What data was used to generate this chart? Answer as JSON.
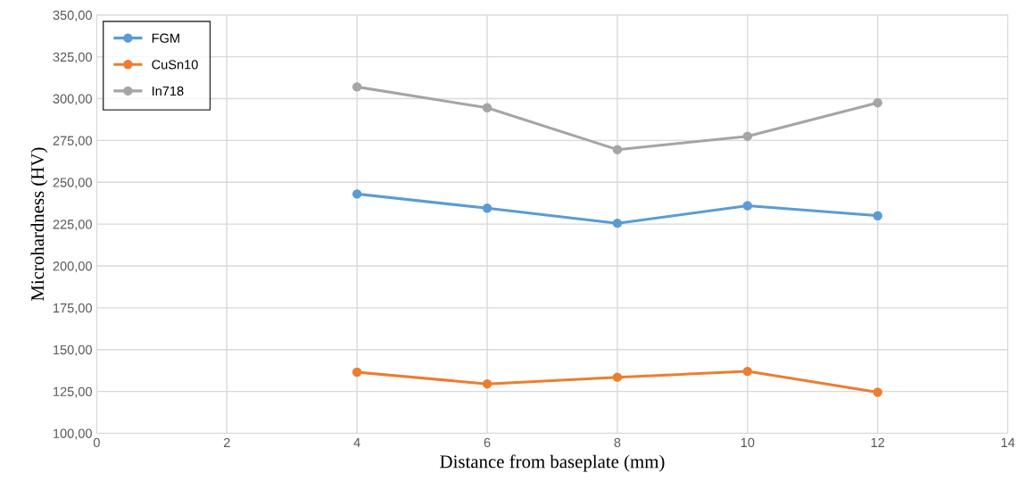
{
  "chart_data": {
    "type": "line",
    "xlabel": "Distance from baseplate (mm)",
    "ylabel": "Microhardness (HV)",
    "x": [
      4,
      6,
      8,
      10,
      12
    ],
    "series": [
      {
        "name": "FGM",
        "color": "#5b9bd5",
        "values": [
          243,
          234.5,
          225.5,
          236,
          230
        ]
      },
      {
        "name": "CuSn10",
        "color": "#ed7d31",
        "values": [
          136.5,
          129.5,
          133.5,
          137,
          124.5
        ]
      },
      {
        "name": "In718",
        "color": "#a5a5a5",
        "values": [
          307,
          294.5,
          269.5,
          277.5,
          297.5
        ]
      }
    ],
    "xlim": [
      0,
      14
    ],
    "xticks": [
      0,
      2,
      4,
      6,
      8,
      10,
      12,
      14
    ],
    "ylim": [
      100,
      350
    ],
    "yticks": [
      {
        "value": 100,
        "label": "100,00"
      },
      {
        "value": 125,
        "label": "125,00"
      },
      {
        "value": 150,
        "label": "150,00"
      },
      {
        "value": 175,
        "label": "175,00"
      },
      {
        "value": 200,
        "label": "200,00"
      },
      {
        "value": 225,
        "label": "225,00"
      },
      {
        "value": 250,
        "label": "250,00"
      },
      {
        "value": 275,
        "label": "275,00"
      },
      {
        "value": 300,
        "label": "300,00"
      },
      {
        "value": 325,
        "label": "325,00"
      },
      {
        "value": 350,
        "label": "350,00"
      }
    ],
    "grid": true,
    "legend": "top left",
    "marker": "circle",
    "line_style": "solid"
  }
}
